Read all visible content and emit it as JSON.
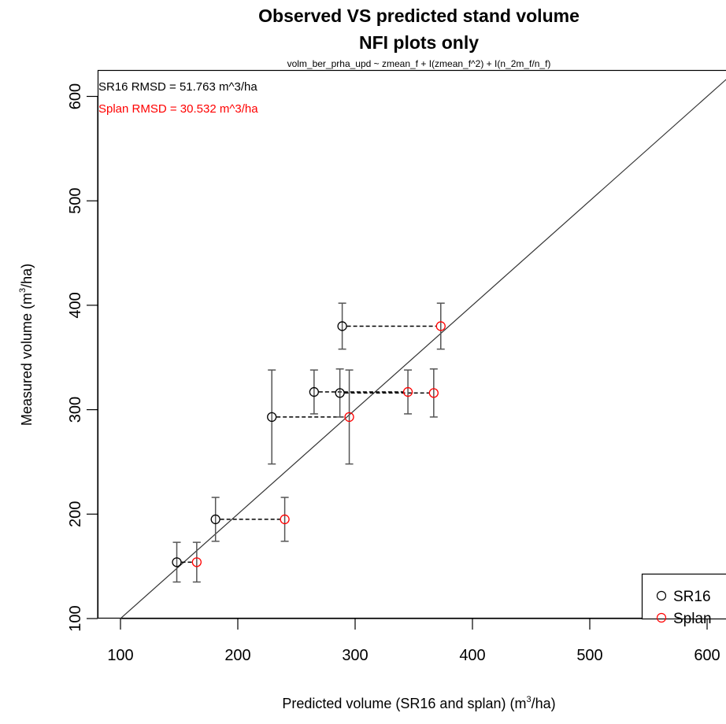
{
  "chart_data": {
    "type": "scatter",
    "title": "Observed VS predicted stand volume",
    "title_line2": "NFI plots only",
    "subtitle": "volm_ber_prha_upd ~ zmean_f + I(zmean_f^2) + I(n_2m_f/n_f)",
    "xlabel_prefix": "Predicted volume (SR16 and splan) (m",
    "xlabel_sup": "3",
    "xlabel_suffix": "/ha)",
    "ylabel_prefix": "Measured volume (m",
    "ylabel_sup": "3",
    "ylabel_suffix": "/ha)",
    "xlim": [
      80,
      615
    ],
    "ylim": [
      80,
      625
    ],
    "x_ticks": [
      "100",
      "200",
      "300",
      "400",
      "500",
      "600"
    ],
    "y_ticks": [
      "100",
      "200",
      "300",
      "400",
      "500",
      "600"
    ],
    "reference_line": "1:1",
    "grid": false,
    "legend_position": "bottom-right",
    "annotations": [
      {
        "text": "SR16 RMSD =  51.763 m^3/ha",
        "color": "#000000"
      },
      {
        "text": "Splan RMSD =  30.532 m^3/ha",
        "color": "#ff0000"
      }
    ],
    "series": [
      {
        "name": "SR16",
        "color": "#000000",
        "points": [
          {
            "x": 148,
            "y": 154,
            "ylo": 135,
            "yhi": 173
          },
          {
            "x": 181,
            "y": 195,
            "ylo": 174,
            "yhi": 216
          },
          {
            "x": 229,
            "y": 293,
            "ylo": 248,
            "yhi": 338
          },
          {
            "x": 265,
            "y": 317,
            "ylo": 296,
            "yhi": 338
          },
          {
            "x": 287,
            "y": 316,
            "ylo": 293,
            "yhi": 339
          },
          {
            "x": 289,
            "y": 380,
            "ylo": 358,
            "yhi": 402
          }
        ]
      },
      {
        "name": "Splan",
        "color": "#ff0000",
        "points": [
          {
            "x": 165,
            "y": 154,
            "ylo": 135,
            "yhi": 173
          },
          {
            "x": 240,
            "y": 195,
            "ylo": 174,
            "yhi": 216
          },
          {
            "x": 295,
            "y": 293,
            "ylo": 248,
            "yhi": 338
          },
          {
            "x": 345,
            "y": 317,
            "ylo": 296,
            "yhi": 338
          },
          {
            "x": 367,
            "y": 316,
            "ylo": 293,
            "yhi": 339
          },
          {
            "x": 373,
            "y": 380,
            "ylo": 358,
            "yhi": 402
          }
        ]
      }
    ]
  }
}
